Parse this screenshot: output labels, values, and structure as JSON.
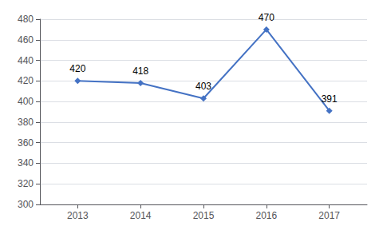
{
  "chart_data": {
    "type": "line",
    "x": [
      2013,
      2014,
      2015,
      2016,
      2017
    ],
    "values": [
      420,
      418,
      403,
      470,
      391
    ],
    "color": "#4472C4",
    "marker": "diamond",
    "xlim": [
      2012.4,
      2017.6
    ],
    "xticks": [
      2013,
      2014,
      2015,
      2016,
      2017
    ],
    "ylim": [
      300,
      480
    ],
    "yticks": [
      300,
      320,
      340,
      360,
      380,
      400,
      420,
      440,
      460,
      480
    ],
    "grid": true,
    "data_labels": true
  }
}
